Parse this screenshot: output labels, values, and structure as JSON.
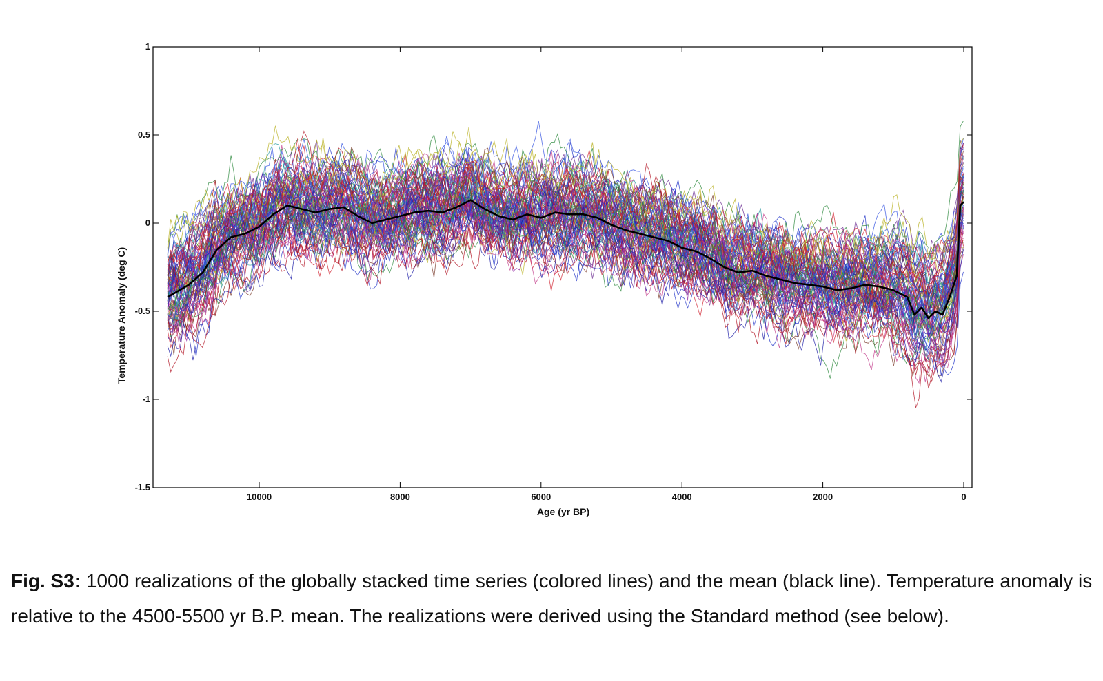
{
  "chart_data": {
    "type": "line",
    "title": "",
    "xlabel": "Age (yr BP)",
    "ylabel": "Temperature Anomaly (deg C)",
    "xlim": [
      11500,
      -200
    ],
    "ylim": [
      -1.5,
      1
    ],
    "x_ticks": [
      10000,
      8000,
      6000,
      4000,
      2000,
      0
    ],
    "y_ticks": [
      1,
      0.5,
      0,
      -0.5,
      -1,
      -1.5
    ],
    "x_tick_labels": [
      "10000",
      "8000",
      "6000",
      "4000",
      "2000",
      "0"
    ],
    "y_tick_labels": [
      "1",
      "0.5",
      "0",
      "-0.5",
      "-1",
      "-1.5"
    ],
    "grid": false,
    "series": [
      {
        "name": "mean",
        "color": "#000000",
        "x": [
          11300,
          11000,
          10800,
          10600,
          10400,
          10200,
          10000,
          9800,
          9600,
          9400,
          9200,
          9000,
          8800,
          8600,
          8400,
          8200,
          8000,
          7800,
          7600,
          7400,
          7200,
          7000,
          6800,
          6600,
          6400,
          6200,
          6000,
          5800,
          5600,
          5400,
          5200,
          5000,
          4800,
          4600,
          4400,
          4200,
          4000,
          3800,
          3600,
          3400,
          3200,
          3000,
          2800,
          2600,
          2400,
          2200,
          2000,
          1800,
          1600,
          1400,
          1200,
          1000,
          800,
          700,
          600,
          500,
          400,
          300,
          200,
          100,
          50,
          0
        ],
        "values": [
          -0.42,
          -0.35,
          -0.28,
          -0.15,
          -0.08,
          -0.06,
          -0.02,
          0.05,
          0.1,
          0.08,
          0.06,
          0.08,
          0.09,
          0.04,
          0.0,
          0.02,
          0.04,
          0.06,
          0.07,
          0.06,
          0.09,
          0.13,
          0.08,
          0.04,
          0.02,
          0.05,
          0.03,
          0.06,
          0.05,
          0.05,
          0.03,
          -0.01,
          -0.04,
          -0.06,
          -0.08,
          -0.1,
          -0.14,
          -0.16,
          -0.2,
          -0.25,
          -0.28,
          -0.27,
          -0.3,
          -0.32,
          -0.34,
          -0.35,
          -0.36,
          -0.38,
          -0.37,
          -0.35,
          -0.36,
          -0.38,
          -0.42,
          -0.52,
          -0.48,
          -0.54,
          -0.5,
          -0.52,
          -0.42,
          -0.3,
          0.1,
          0.12
        ]
      }
    ],
    "realizations": {
      "count": 1000,
      "colors": [
        "#1a1aa6",
        "#2033c8",
        "#b01020",
        "#d0202e",
        "#2e8a3e",
        "#6a2a90",
        "#c23a8a",
        "#2a9aa0",
        "#b8b020",
        "#7a3a2a",
        "#3050e0",
        "#9020a0"
      ]
    }
  },
  "caption": {
    "label": "Fig. S3:",
    "text": " 1000 realizations of the globally stacked time series (colored lines) and the mean (black line). Temperature anomaly is relative to the 4500-5500 yr B.P. mean.  The realizations were derived using the Standard method (see below)."
  }
}
